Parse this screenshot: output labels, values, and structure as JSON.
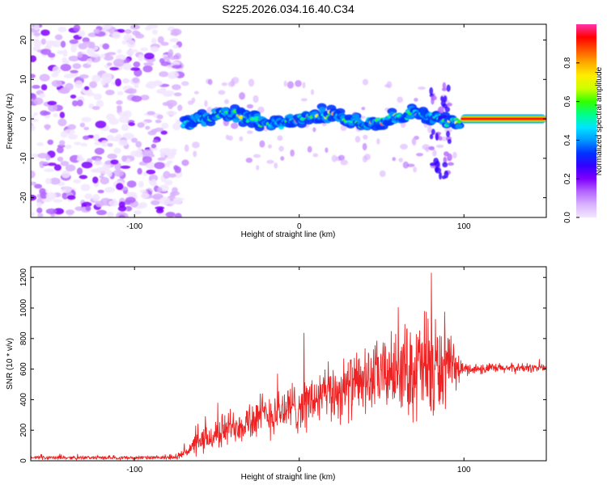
{
  "figure_title": "S225.2026.034.16.40.C34",
  "colors": {
    "snr_line": "#ee2222",
    "background_noise": "#8a2be2",
    "colormap": [
      "#f2e6ff",
      "#d9b3ff",
      "#b366ff",
      "#8000ff",
      "#3300ff",
      "#0033ff",
      "#0099ff",
      "#00e5ff",
      "#00ff88",
      "#33ff00",
      "#ccff00",
      "#ffee00",
      "#ffaa00",
      "#ff5500",
      "#ff0000",
      "#ff33aa"
    ]
  },
  "chart_data": [
    {
      "type": "heatmap",
      "name": "spectrogram",
      "xlabel": "Height of straight line (km)",
      "ylabel": "Frequency (Hz)",
      "xlim": [
        -163,
        150
      ],
      "ylim": [
        -25,
        24
      ],
      "x_ticks": [
        -100,
        0,
        100
      ],
      "x_tick_labels": [
        "-100",
        "0",
        "100"
      ],
      "y_ticks": [
        -20,
        -10,
        0,
        10,
        20
      ],
      "y_tick_labels": [
        "-20",
        "-10",
        "0",
        "10",
        "20"
      ],
      "noise_region_x": [
        -163,
        -72
      ],
      "signal_region_x": [
        -72,
        150
      ],
      "ridge_frequency_hz": 0,
      "colorbar": {
        "label": "Normalized spectral amplitude",
        "range": [
          0,
          1
        ],
        "ticks": [
          0.0,
          0.2,
          0.4,
          0.6,
          0.8
        ],
        "tick_labels": [
          "0.0",
          "0.2",
          "0.4",
          "0.6",
          "0.8"
        ]
      }
    },
    {
      "type": "line",
      "name": "snr",
      "xlabel": "Height of straight line (km)",
      "ylabel": "SNR (10 * v/v)",
      "xlim": [
        -163,
        150
      ],
      "ylim": [
        0,
        1270
      ],
      "x_ticks": [
        -100,
        0,
        100
      ],
      "x_tick_labels": [
        "-100",
        "0",
        "100"
      ],
      "y_ticks": [
        0,
        200,
        400,
        600,
        800,
        1000,
        1200
      ],
      "y_tick_labels": [
        "0",
        "200",
        "400",
        "600",
        "800",
        "1000",
        "1200"
      ],
      "envelope": {
        "x": [
          -163,
          -75,
          -60,
          -40,
          -20,
          0,
          20,
          40,
          60,
          80,
          100,
          150
        ],
        "mean": [
          20,
          20,
          120,
          230,
          300,
          360,
          440,
          520,
          600,
          600,
          600,
          610
        ],
        "amp": [
          12,
          12,
          90,
          130,
          160,
          180,
          200,
          220,
          260,
          420,
          40,
          30
        ]
      }
    }
  ]
}
